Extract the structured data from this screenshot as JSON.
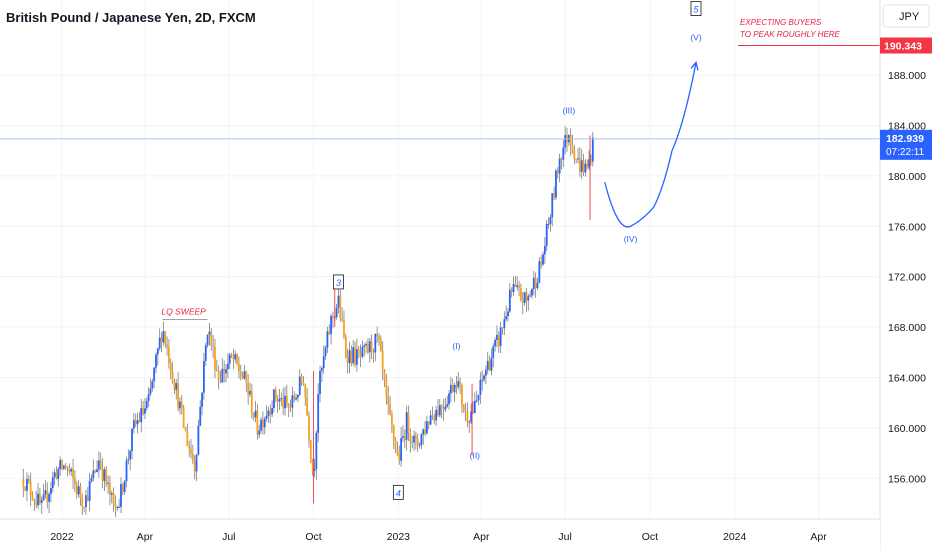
{
  "title": "British Pound / Japanese Yen, 2D, FXCM",
  "currency": "JPY",
  "colors": {
    "up": "#2962ff",
    "down": "#f7a21b",
    "wick": "#7d7d7d",
    "annotation_blue": "#2962ff",
    "annotation_red": "#e91e43",
    "price_line": "#a8c6f5",
    "target_line": "#f23645",
    "grid": "#f0f3fa",
    "axis_text": "#131722"
  },
  "price_axis": {
    "ticks": [
      "188.000",
      "184.000",
      "180.000",
      "176.000",
      "172.000",
      "168.000",
      "164.000",
      "160.000",
      "156.000"
    ]
  },
  "time_axis": {
    "ticks": [
      "2022",
      "Apr",
      "Jul",
      "Oct",
      "2023",
      "Apr",
      "Jul",
      "Oct",
      "2024",
      "Apr"
    ]
  },
  "current_price": {
    "value": "182.939",
    "countdown": "07:22:11"
  },
  "target_price": {
    "value": "190.343"
  },
  "annotations": {
    "expecting_line1": "EXPECTING BUYERS",
    "expecting_line2": "TO PEAK ROUGHLY HERE",
    "lq_sweep": "LQ SWEEP",
    "wave_3_box": "3",
    "wave_4_box": "4",
    "wave_5_box": "5",
    "wave_I": "(I)",
    "wave_II": "(II)",
    "wave_III": "(III)",
    "wave_IV": "(IV)",
    "wave_V": "(V)"
  },
  "chart_data": {
    "type": "candlestick",
    "symbol": "GBPJPY",
    "timeframe": "2D",
    "ylim": [
      153.5,
      194.0
    ],
    "current_price": 182.939,
    "target_price": 190.343,
    "price_path": [
      [
        "2021-11-20",
        156.0
      ],
      [
        "2021-12-10",
        153.6
      ],
      [
        "2021-12-25",
        156.5
      ],
      [
        "2022-01-05",
        157.0
      ],
      [
        "2022-01-25",
        154.0
      ],
      [
        "2022-02-10",
        157.5
      ],
      [
        "2022-03-01",
        153.0
      ],
      [
        "2022-03-20",
        160.0
      ],
      [
        "2022-04-05",
        162.0
      ],
      [
        "2022-04-20",
        168.0
      ],
      [
        "2022-05-05",
        163.0
      ],
      [
        "2022-05-15",
        159.5
      ],
      [
        "2022-05-25",
        157.0
      ],
      [
        "2022-06-08",
        168.0
      ],
      [
        "2022-06-20",
        164.0
      ],
      [
        "2022-07-05",
        165.5
      ],
      [
        "2022-07-20",
        163.5
      ],
      [
        "2022-08-01",
        160.0
      ],
      [
        "2022-08-20",
        162.5
      ],
      [
        "2022-09-05",
        161.5
      ],
      [
        "2022-09-20",
        164.0
      ],
      [
        "2022-10-01",
        156.0
      ],
      [
        "2022-10-06",
        163.0
      ],
      [
        "2022-10-20",
        168.5
      ],
      [
        "2022-10-28",
        170.0
      ],
      [
        "2022-11-05",
        166.0
      ],
      [
        "2022-11-20",
        165.5
      ],
      [
        "2022-12-10",
        167.0
      ],
      [
        "2022-12-20",
        161.5
      ],
      [
        "2023-01-01",
        157.5
      ],
      [
        "2023-01-10",
        160.5
      ],
      [
        "2023-01-20",
        158.5
      ],
      [
        "2023-02-05",
        161.0
      ],
      [
        "2023-02-20",
        162.0
      ],
      [
        "2023-03-05",
        164.0
      ],
      [
        "2023-03-15",
        161.0
      ],
      [
        "2023-03-25",
        161.5
      ],
      [
        "2023-04-05",
        164.5
      ],
      [
        "2023-04-20",
        167.0
      ],
      [
        "2023-05-05",
        171.0
      ],
      [
        "2023-05-20",
        170.0
      ],
      [
        "2023-06-05",
        173.0
      ],
      [
        "2023-06-15",
        177.0
      ],
      [
        "2023-06-25",
        181.5
      ],
      [
        "2023-07-05",
        183.5
      ],
      [
        "2023-07-15",
        181.0
      ],
      [
        "2023-07-25",
        180.5
      ],
      [
        "2023-08-01",
        182.9
      ]
    ],
    "projection": [
      [
        "2023-08-13",
        179.5
      ],
      [
        "2023-09-10",
        176.0
      ],
      [
        "2023-10-05",
        177.5
      ],
      [
        "2023-10-25",
        182.0
      ],
      [
        "2023-11-20",
        189.0
      ]
    ],
    "wave_labels": [
      {
        "label": "3",
        "date": "2022-10-28",
        "price": 171.5,
        "boxed": true
      },
      {
        "label": "4",
        "date": "2023-01-01",
        "price": 154.8,
        "boxed": true
      },
      {
        "label": "5",
        "date": "2023-11-20",
        "price": 193.2,
        "boxed": true
      },
      {
        "label": "(I)",
        "date": "2023-03-05",
        "price": 166.5
      },
      {
        "label": "(II)",
        "date": "2023-03-25",
        "price": 157.8
      },
      {
        "label": "(III)",
        "date": "2023-07-05",
        "price": 185.2
      },
      {
        "label": "(IV)",
        "date": "2023-09-10",
        "price": 175.0
      },
      {
        "label": "(V)",
        "date": "2023-11-20",
        "price": 191.0
      }
    ]
  }
}
